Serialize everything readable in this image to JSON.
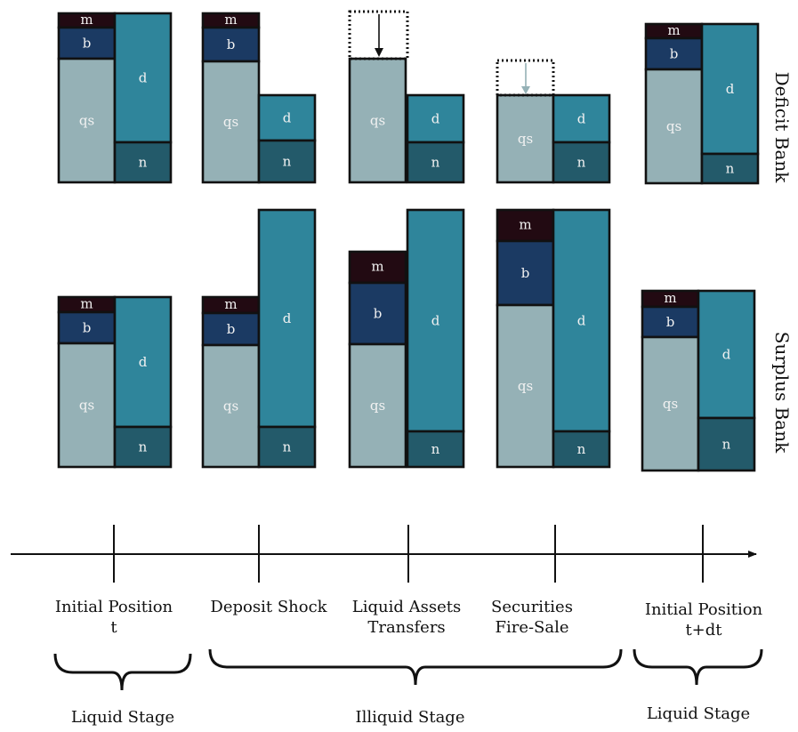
{
  "colors": {
    "m": "#220a12",
    "b": "#1b3a63",
    "qs": "#95b1b6",
    "d": "#2f859b",
    "n": "#235a6a",
    "outline": "#111111",
    "label_light": "#f2f2f2"
  },
  "segment_labels": {
    "m": "m",
    "b": "b",
    "qs": "qs",
    "d": "d",
    "n": "n"
  },
  "bank_labels": {
    "deficit": "Deficit Bank",
    "surplus": "Surplus Bank"
  },
  "timeline": {
    "stages": [
      {
        "line1": "Initial Position",
        "line2": "t"
      },
      {
        "line1": "Deposit Shock",
        "line2": ""
      },
      {
        "line1": "Liquid Assets",
        "line2": "Transfers"
      },
      {
        "line1": "Securities",
        "line2": "Fire-Sale"
      },
      {
        "line1": "Initial Position",
        "line2": "t+dt"
      }
    ],
    "phases": [
      {
        "label": "Liquid Stage"
      },
      {
        "label": "Illiquid Stage"
      },
      {
        "label": "Liquid Stage"
      }
    ]
  }
}
